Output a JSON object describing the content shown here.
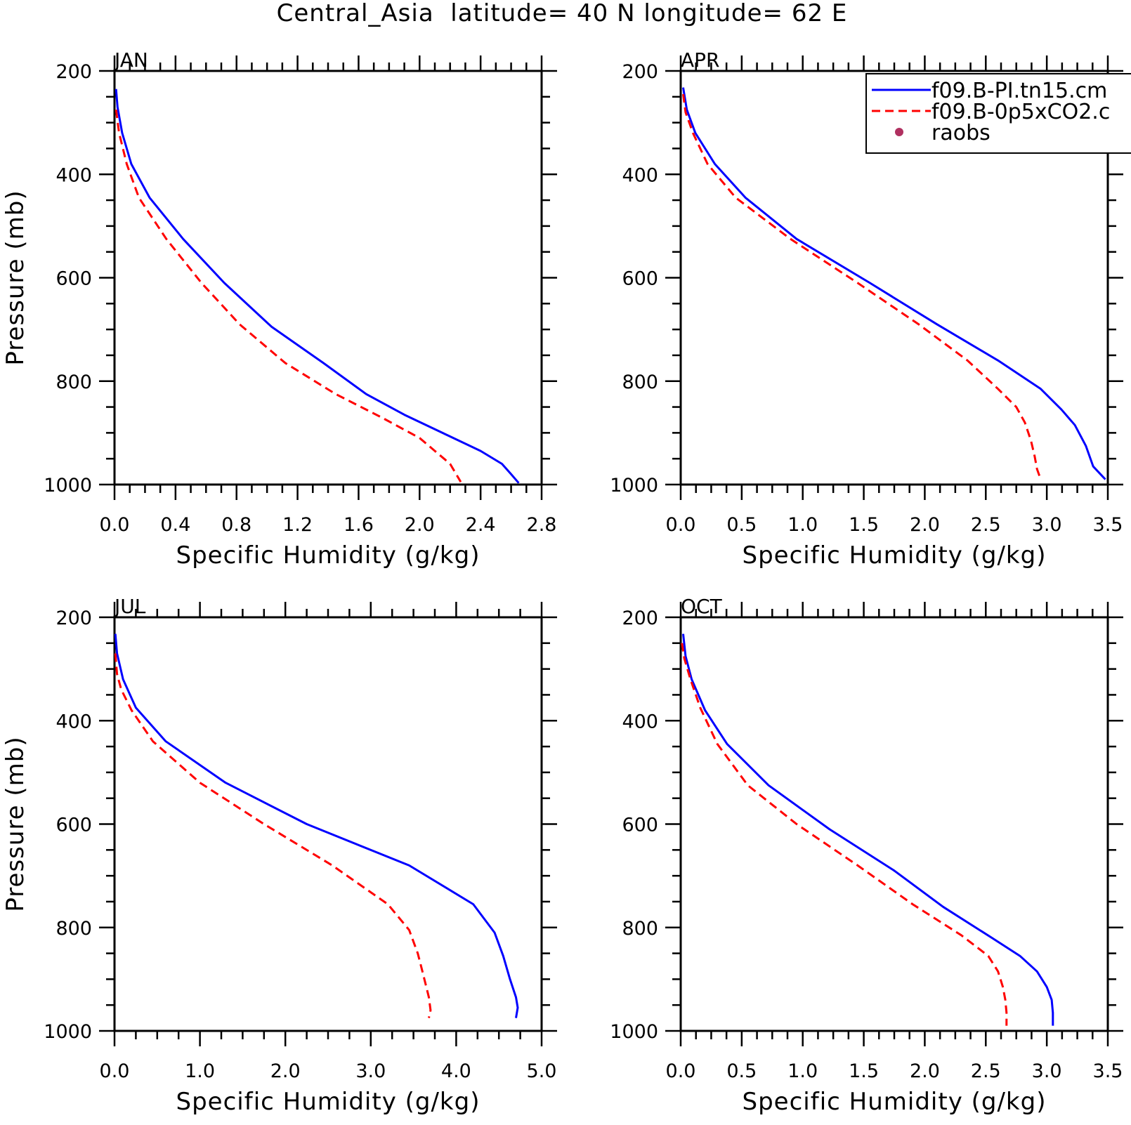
{
  "figure": {
    "title": "Central_Asia  latitude= 40 N longitude= 62 E"
  },
  "colors": {
    "series_1": "#0000ff",
    "series_2": "#ff0000",
    "raobs": "#b03060",
    "axes": "#000000",
    "background": "#ffffff"
  },
  "legend": {
    "placement": "top-right of APR panel, clipped at figure edge",
    "entries": [
      {
        "label": "f09.B-PI.tn15.cm",
        "color": "#0000ff",
        "style": "solid line"
      },
      {
        "label": "f09.B-0p5xCO2.c",
        "color": "#ff0000",
        "style": "dashed line"
      },
      {
        "label": "raobs",
        "color": "#b03060",
        "style": "dot marker"
      }
    ]
  },
  "chart_data": [
    {
      "type": "line",
      "panel": "JAN",
      "xlabel": "Specific Humidity (g/kg)",
      "ylabel": "Pressure (mb)",
      "xlim": [
        0,
        2.8
      ],
      "ylim": [
        1000,
        200
      ],
      "y_inverted": true,
      "xticks": [
        "0.0",
        "0.4",
        "0.8",
        "1.2",
        "1.6",
        "2.0",
        "2.4",
        "2.8"
      ],
      "yticks": [
        "200",
        "400",
        "600",
        "800",
        "1000"
      ],
      "series": [
        {
          "line_style": "solid",
          "color": "#0000ff",
          "x": [
            0.01,
            0.02,
            0.05,
            0.11,
            0.23,
            0.45,
            0.72,
            1.03,
            1.37,
            1.65,
            1.9,
            2.15,
            2.4,
            2.54,
            2.6,
            2.65
          ],
          "y": [
            235,
            270,
            320,
            380,
            445,
            525,
            610,
            695,
            765,
            825,
            865,
            900,
            935,
            960,
            980,
            997
          ]
        },
        {
          "line_style": "dashed",
          "color": "#ff0000",
          "x": [
            0.01,
            0.03,
            0.08,
            0.16,
            0.34,
            0.57,
            0.82,
            1.12,
            1.45,
            1.75,
            2.0,
            2.1,
            2.2,
            2.27
          ],
          "y": [
            275,
            320,
            380,
            445,
            525,
            610,
            690,
            765,
            825,
            870,
            910,
            935,
            960,
            995
          ]
        }
      ]
    },
    {
      "type": "line",
      "panel": "APR",
      "xlabel": "Specific Humidity (g/kg)",
      "ylabel": "",
      "xlim": [
        0,
        3.5
      ],
      "ylim": [
        1000,
        200
      ],
      "y_inverted": true,
      "xticks": [
        "0.0",
        "0.5",
        "1.0",
        "1.5",
        "2.0",
        "2.5",
        "3.0",
        "3.5"
      ],
      "yticks": [
        "200",
        "400",
        "600",
        "800",
        "1000"
      ],
      "series": [
        {
          "line_style": "solid",
          "color": "#0000ff",
          "x": [
            0.02,
            0.05,
            0.12,
            0.28,
            0.53,
            0.95,
            1.55,
            2.1,
            2.6,
            2.95,
            3.12,
            3.23,
            3.32,
            3.38,
            3.44,
            3.48
          ],
          "y": [
            232,
            275,
            320,
            380,
            445,
            525,
            610,
            690,
            760,
            815,
            855,
            885,
            925,
            965,
            980,
            990
          ]
        },
        {
          "line_style": "dashed",
          "color": "#ff0000",
          "x": [
            0.02,
            0.04,
            0.1,
            0.22,
            0.45,
            0.9,
            1.45,
            1.95,
            2.35,
            2.6,
            2.75,
            2.82,
            2.87,
            2.9,
            2.92,
            2.95
          ],
          "y": [
            245,
            280,
            320,
            380,
            445,
            525,
            610,
            690,
            760,
            815,
            850,
            880,
            915,
            945,
            970,
            990
          ]
        }
      ]
    },
    {
      "type": "line",
      "panel": "JUL",
      "xlabel": "Specific Humidity (g/kg)",
      "ylabel": "Pressure (mb)",
      "xlim": [
        0,
        5.0
      ],
      "ylim": [
        1000,
        200
      ],
      "y_inverted": true,
      "xticks": [
        "0.0",
        "1.0",
        "2.0",
        "3.0",
        "4.0",
        "5.0"
      ],
      "yticks": [
        "200",
        "400",
        "600",
        "800",
        "1000"
      ],
      "series": [
        {
          "line_style": "solid",
          "color": "#0000ff",
          "x": [
            0.01,
            0.03,
            0.1,
            0.25,
            0.6,
            1.3,
            2.25,
            3.45,
            4.2,
            4.45,
            4.55,
            4.63,
            4.7,
            4.72,
            4.7
          ],
          "y": [
            232,
            270,
            320,
            375,
            440,
            520,
            600,
            680,
            755,
            810,
            855,
            900,
            935,
            955,
            975
          ]
        },
        {
          "line_style": "dashed",
          "color": "#ff0000",
          "x": [
            0.01,
            0.03,
            0.08,
            0.2,
            0.45,
            1.0,
            1.75,
            2.55,
            3.2,
            3.45,
            3.55,
            3.62,
            3.68,
            3.7,
            3.68
          ],
          "y": [
            270,
            310,
            340,
            380,
            440,
            520,
            600,
            680,
            755,
            805,
            850,
            895,
            935,
            960,
            975
          ]
        }
      ]
    },
    {
      "type": "line",
      "panel": "OCT",
      "xlabel": "Specific Humidity (g/kg)",
      "ylabel": "",
      "xlim": [
        0,
        3.5
      ],
      "ylim": [
        1000,
        200
      ],
      "y_inverted": true,
      "xticks": [
        "0.0",
        "0.5",
        "1.0",
        "1.5",
        "2.0",
        "2.5",
        "3.0",
        "3.5"
      ],
      "yticks": [
        "200",
        "400",
        "600",
        "800",
        "1000"
      ],
      "series": [
        {
          "line_style": "solid",
          "color": "#0000ff",
          "x": [
            0.02,
            0.04,
            0.09,
            0.2,
            0.38,
            0.72,
            1.22,
            1.75,
            2.15,
            2.55,
            2.78,
            2.92,
            3.0,
            3.04,
            3.05,
            3.05
          ],
          "y": [
            232,
            275,
            320,
            380,
            445,
            525,
            610,
            690,
            760,
            820,
            855,
            885,
            915,
            940,
            965,
            990
          ]
        },
        {
          "line_style": "dashed",
          "color": "#ff0000",
          "x": [
            0.01,
            0.03,
            0.08,
            0.16,
            0.3,
            0.55,
            0.95,
            1.45,
            1.9,
            2.3,
            2.52,
            2.6,
            2.64,
            2.66,
            2.67,
            2.67
          ],
          "y": [
            250,
            280,
            320,
            375,
            445,
            525,
            600,
            680,
            755,
            815,
            855,
            885,
            915,
            940,
            965,
            990
          ]
        }
      ]
    }
  ]
}
